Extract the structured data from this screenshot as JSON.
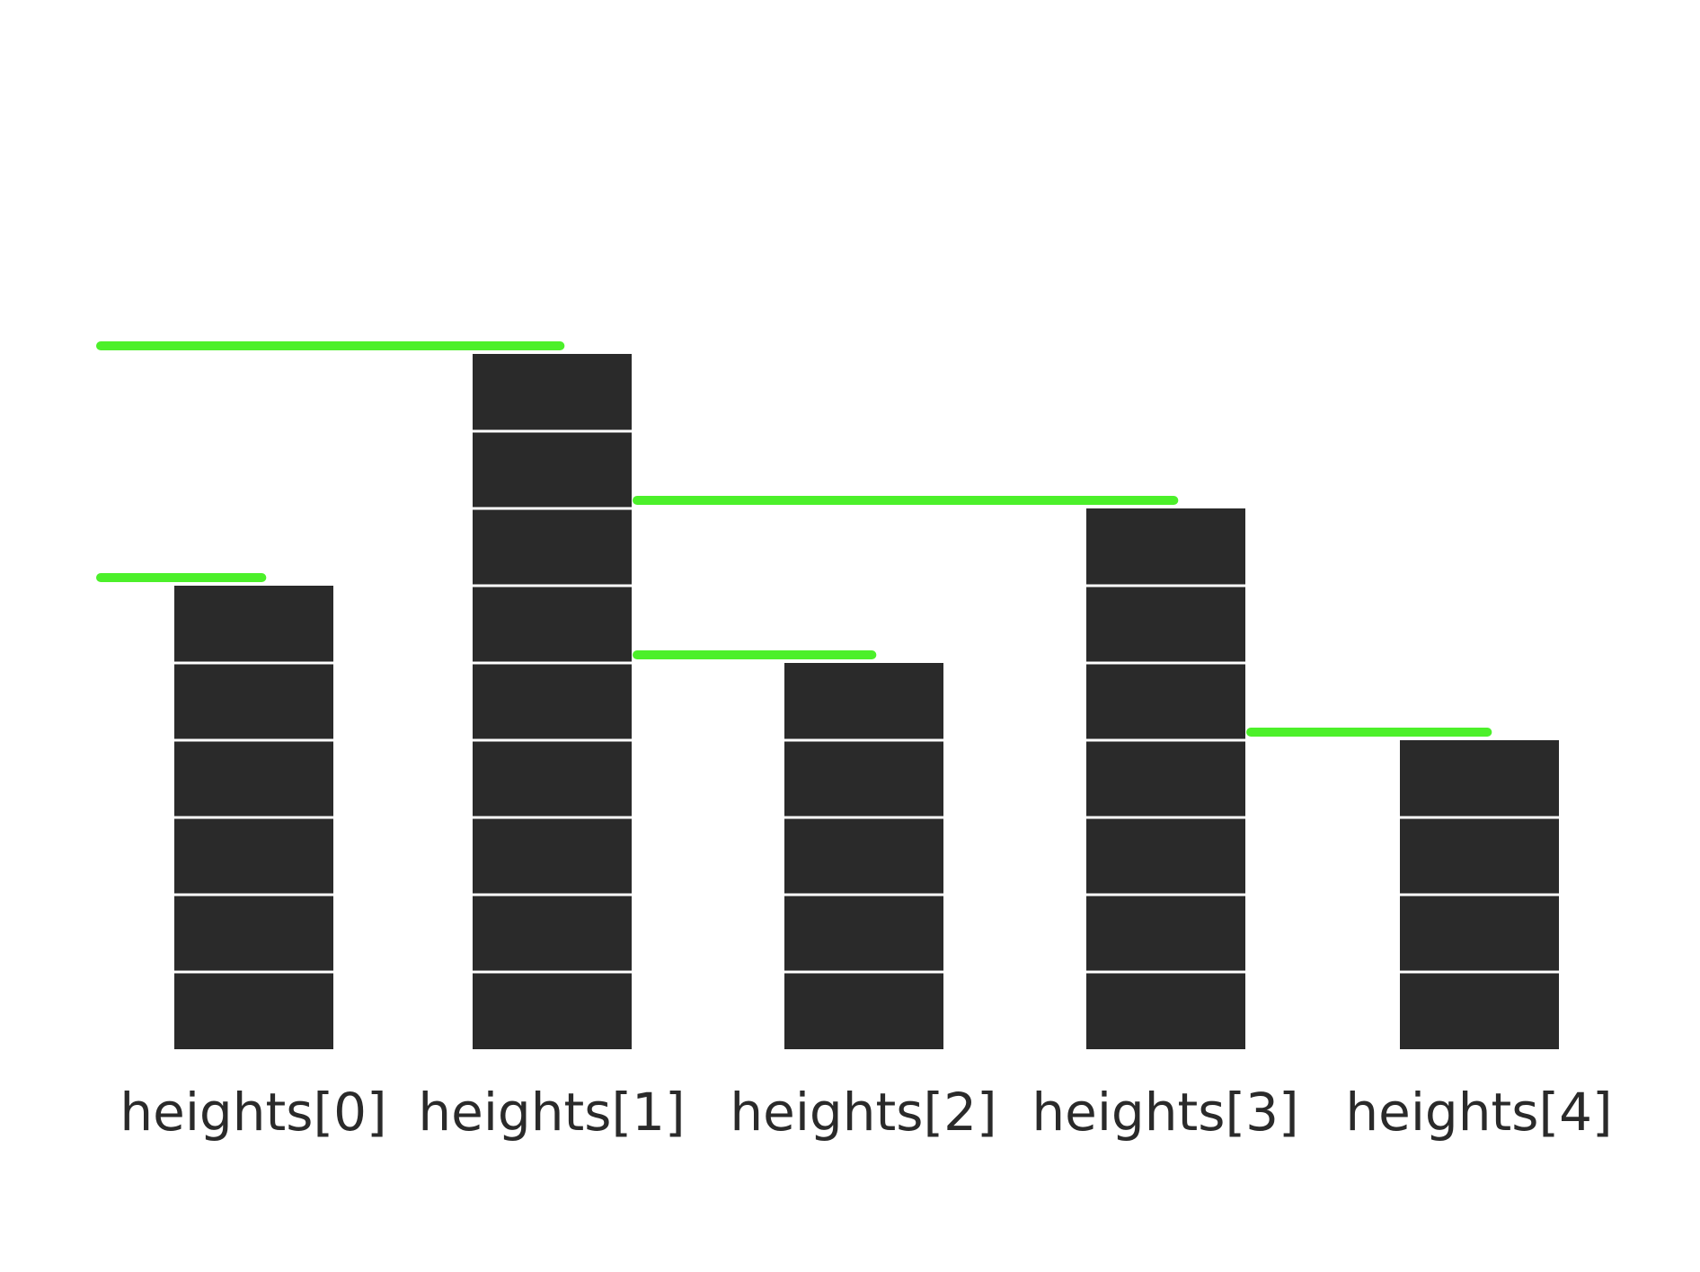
{
  "chart_data": {
    "type": "bar",
    "categories": [
      "heights[0]",
      "heights[1]",
      "heights[2]",
      "heights[3]",
      "heights[4]"
    ],
    "values": [
      6,
      9,
      5,
      7,
      4
    ],
    "unit_blocks": true,
    "markers": [
      {
        "level": 6,
        "spans_columns": [
          0
        ]
      },
      {
        "level": 9,
        "spans_columns": [
          0,
          1
        ]
      },
      {
        "level": 7,
        "spans_columns": [
          1,
          2,
          3
        ]
      },
      {
        "level": 5,
        "spans_columns": [
          1,
          2
        ]
      },
      {
        "level": 4,
        "spans_columns": [
          3,
          4
        ]
      }
    ],
    "colors": {
      "bar": "#2a2a2a",
      "block_divider": "#ffffff",
      "marker": "#4cf02a",
      "label": "#2a2a2a"
    }
  }
}
